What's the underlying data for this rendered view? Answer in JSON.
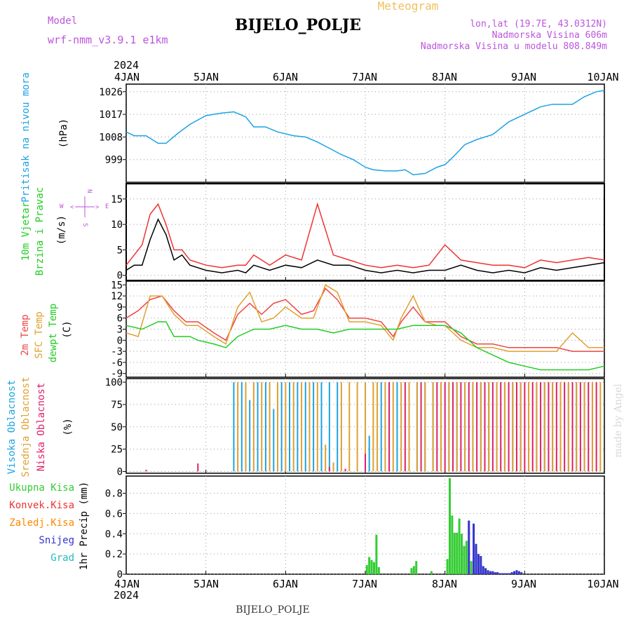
{
  "header": {
    "model_label": "Model",
    "model_name": "wrf-nmm_v3.9.1  e1km",
    "title": "BIJELO_POLJE",
    "product": "Meteogram",
    "location_line": "lon,lat (19.7E, 43.0312N)",
    "altitude_line": "Nadmorska Visina 606m",
    "model_altitude_line": "Nadmorska Visina u modelu 808.849m",
    "footer_name": "BIJELO_POLJE",
    "credit": "made by Angel",
    "year_top": "2024",
    "year_bottom": "2024"
  },
  "colors": {
    "pressure": "#1ca3e3",
    "wind_speed_black": "#000000",
    "gust_red": "#ee3333",
    "temp_2m": "#ee4444",
    "temp_sfc": "#e0a030",
    "dewpoint": "#22cc22",
    "high_cloud": "#1ca3e3",
    "mid_cloud": "#e0a030",
    "low_cloud": "#e0206a",
    "total_precip": "#33cc33",
    "conv_precip": "#ee3333",
    "frozen_precip": "#ff8800",
    "snow": "#3333cc",
    "graupel": "#22bbbb",
    "label_purple": "#bb55dd",
    "label_gold": "#f0c060"
  },
  "chart_data": [
    {
      "type": "line",
      "panel": "pressure",
      "left_label": "Pritisak na nivou mora",
      "unit_label": "(hPa)",
      "x_ticks": [
        "4JAN",
        "5JAN",
        "6JAN",
        "7JAN",
        "8JAN",
        "9JAN",
        "10JAN"
      ],
      "y_ticks": [
        999,
        1008,
        1017,
        1026
      ],
      "ylim": [
        990,
        1029
      ],
      "grid": true,
      "series": [
        {
          "x": [
            0,
            0.1,
            0.25,
            0.4,
            0.5,
            0.65,
            0.8,
            1.0,
            1.2,
            1.35,
            1.5,
            1.6,
            1.75,
            1.9,
            2.1,
            2.25,
            2.4,
            2.55,
            2.7,
            2.85,
            3.0,
            3.1,
            3.25,
            3.4,
            3.5,
            3.6,
            3.75,
            3.9,
            4.0,
            4.1,
            4.25,
            4.4,
            4.6,
            4.8,
            5.0,
            5.2,
            5.35,
            5.5,
            5.6,
            5.75,
            5.9,
            6.0
          ],
          "y": [
            1010,
            1008.5,
            1008.5,
            1005.5,
            1005.5,
            1009.5,
            1013,
            1016.5,
            1017.5,
            1018,
            1016,
            1012,
            1012,
            1010,
            1008.5,
            1008,
            1006,
            1003.5,
            1001,
            999,
            996,
            995,
            994.5,
            994.5,
            995,
            993,
            993.5,
            996,
            997,
            1000,
            1005,
            1007,
            1009,
            1014,
            1017,
            1020,
            1021,
            1021,
            1021,
            1024,
            1026,
            1026.5
          ]
        }
      ]
    },
    {
      "type": "line",
      "panel": "wind",
      "left_label_1": "10m Vjetar",
      "left_label_2": "Brzina i Pravac",
      "unit_label": "(m/s)",
      "compass_labels": [
        "N",
        "W",
        "E",
        "S",
        "<",
        ">"
      ],
      "x_ticks": [
        "4JAN",
        "5JAN",
        "6JAN",
        "7JAN",
        "8JAN",
        "9JAN",
        "10JAN"
      ],
      "y_ticks": [
        0,
        5,
        10,
        15
      ],
      "ylim": [
        -1,
        18
      ],
      "grid": true,
      "series": [
        {
          "color_key": "wind_speed_black",
          "x": [
            0,
            0.1,
            0.2,
            0.3,
            0.4,
            0.5,
            0.6,
            0.7,
            0.8,
            1.0,
            1.2,
            1.4,
            1.5,
            1.6,
            1.7,
            1.8,
            2.0,
            2.2,
            2.4,
            2.6,
            2.8,
            3.0,
            3.2,
            3.4,
            3.6,
            3.8,
            4.0,
            4.2,
            4.4,
            4.6,
            4.8,
            5.0,
            5.2,
            5.4,
            5.6,
            5.8,
            6.0
          ],
          "y": [
            1,
            2,
            2,
            7,
            11,
            8,
            3,
            4,
            2,
            1,
            0.5,
            1,
            0.5,
            2,
            1.5,
            1,
            2,
            1.5,
            3,
            2,
            2,
            1,
            0.5,
            1,
            0.5,
            1,
            1,
            2,
            1,
            0.5,
            1,
            0.5,
            1.5,
            1,
            1.5,
            2,
            2.5
          ]
        },
        {
          "color_key": "gust_red",
          "x": [
            0,
            0.1,
            0.2,
            0.3,
            0.4,
            0.5,
            0.6,
            0.7,
            0.8,
            1.0,
            1.2,
            1.4,
            1.5,
            1.6,
            1.7,
            1.8,
            2.0,
            2.2,
            2.4,
            2.6,
            2.8,
            3.0,
            3.2,
            3.4,
            3.6,
            3.8,
            4.0,
            4.2,
            4.4,
            4.6,
            4.8,
            5.0,
            5.2,
            5.4,
            5.6,
            5.8,
            6.0
          ],
          "y": [
            2,
            4,
            6,
            12,
            14,
            10,
            5,
            5,
            3,
            2,
            1.5,
            2,
            2,
            4,
            3,
            2,
            4,
            3,
            14,
            4,
            3,
            2,
            1.5,
            2,
            1.5,
            2,
            6,
            3,
            2.5,
            2,
            2,
            1.5,
            3,
            2.5,
            3,
            3.5,
            3
          ]
        }
      ]
    },
    {
      "type": "line",
      "panel": "temperature",
      "left_label_1": "2m Temp",
      "left_label_2": "SFC Temp",
      "left_label_3": "dewpt Temp",
      "unit_label": "(C)",
      "x_ticks": [
        "4JAN",
        "5JAN",
        "6JAN",
        "7JAN",
        "8JAN",
        "9JAN",
        "10JAN"
      ],
      "y_ticks": [
        -9,
        -6,
        -3,
        0,
        3,
        6,
        9,
        12,
        15
      ],
      "ylim": [
        -10,
        16
      ],
      "grid": true,
      "series": [
        {
          "name": "2m Temp",
          "color_key": "temp_2m",
          "x": [
            0,
            0.15,
            0.3,
            0.45,
            0.6,
            0.75,
            0.9,
            1.1,
            1.25,
            1.4,
            1.55,
            1.7,
            1.85,
            2.0,
            2.2,
            2.35,
            2.5,
            2.65,
            2.8,
            3.0,
            3.2,
            3.35,
            3.45,
            3.6,
            3.75,
            3.9,
            4.0,
            4.2,
            4.4,
            4.6,
            4.8,
            5.0,
            5.2,
            5.4,
            5.6,
            5.8,
            6.0
          ],
          "y": [
            6,
            8,
            11,
            12,
            8,
            5,
            5,
            2,
            0,
            7,
            10,
            7,
            10,
            11,
            7,
            8,
            14,
            11,
            6,
            6,
            5,
            1,
            5,
            9,
            5,
            5,
            5,
            1,
            -1,
            -1,
            -2,
            -2,
            -2,
            -2,
            -3,
            -3,
            -3
          ]
        },
        {
          "name": "SFC Temp",
          "color_key": "temp_sfc",
          "x": [
            0,
            0.15,
            0.3,
            0.45,
            0.6,
            0.75,
            0.9,
            1.1,
            1.25,
            1.4,
            1.55,
            1.7,
            1.85,
            2.0,
            2.2,
            2.35,
            2.5,
            2.65,
            2.8,
            3.0,
            3.2,
            3.35,
            3.45,
            3.6,
            3.75,
            3.9,
            4.0,
            4.2,
            4.4,
            4.6,
            4.8,
            5.0,
            5.2,
            5.4,
            5.6,
            5.8,
            6.0
          ],
          "y": [
            2,
            1,
            12,
            12,
            7,
            4,
            4,
            1,
            -1,
            9,
            13,
            5,
            6,
            9,
            6,
            6,
            15,
            13,
            5,
            5,
            4,
            0,
            6,
            12,
            5,
            4,
            4,
            0,
            -2,
            -2,
            -3,
            -3,
            -3,
            -3,
            2,
            -2,
            -2
          ]
        },
        {
          "name": "dewpt Temp",
          "color_key": "dewpoint",
          "x": [
            0,
            0.2,
            0.4,
            0.5,
            0.6,
            0.8,
            0.9,
            1.1,
            1.25,
            1.4,
            1.6,
            1.8,
            2.0,
            2.2,
            2.4,
            2.6,
            2.8,
            3.0,
            3.2,
            3.4,
            3.6,
            3.8,
            4.0,
            4.2,
            4.4,
            4.6,
            4.8,
            5.0,
            5.2,
            5.4,
            5.6,
            5.8,
            6.0
          ],
          "y": [
            4,
            3,
            5,
            5,
            1,
            1,
            0,
            -1,
            -2,
            1,
            3,
            3,
            4,
            3,
            3,
            2,
            3,
            3,
            3,
            3,
            4,
            4,
            4,
            2,
            -2,
            -4,
            -6,
            -7,
            -8,
            -8,
            -8,
            -8,
            -7
          ]
        }
      ]
    },
    {
      "type": "bar",
      "panel": "cloud",
      "left_label_1": "Visoka Oblacnost",
      "left_label_2": "Srednja Oblacnost",
      "left_label_3": "Niska Oblacnost",
      "unit_label": "(%)",
      "x_ticks": [
        "4JAN",
        "5JAN",
        "6JAN",
        "7JAN",
        "8JAN",
        "9JAN",
        "10JAN"
      ],
      "y_ticks": [
        0,
        25,
        50,
        75,
        100
      ],
      "ylim": [
        -2,
        104
      ],
      "grid": true,
      "series": [
        {
          "name": "Visoka Oblacnost",
          "color_key": "high_cloud",
          "x": [
            1.35,
            1.45,
            1.55,
            1.65,
            1.75,
            1.85,
            1.95,
            2.05,
            2.15,
            2.25,
            2.35,
            2.45,
            2.55,
            2.65,
            3.0,
            3.05,
            3.2,
            3.3,
            3.4,
            3.55,
            3.65,
            3.75,
            3.85,
            3.95,
            4.05,
            4.15,
            4.25,
            4.35,
            4.45,
            4.55,
            4.65,
            4.75,
            4.85,
            4.95,
            5.05,
            5.15,
            5.25,
            5.35,
            5.45,
            5.55,
            5.65,
            5.75,
            5.85,
            5.95
          ],
          "values": [
            100,
            100,
            80,
            100,
            100,
            70,
            100,
            100,
            100,
            100,
            100,
            100,
            100,
            100,
            20,
            40,
            100,
            100,
            100,
            100,
            100,
            100,
            100,
            100,
            100,
            100,
            100,
            100,
            100,
            100,
            100,
            100,
            100,
            100,
            100,
            100,
            100,
            100,
            100,
            100,
            100,
            100,
            100,
            0
          ]
        },
        {
          "name": "Srednja Oblacnost",
          "color_key": "mid_cloud",
          "x": [
            1.4,
            1.5,
            1.6,
            1.7,
            1.8,
            1.9,
            2.0,
            2.1,
            2.2,
            2.3,
            2.4,
            2.5,
            2.6,
            2.7,
            2.8,
            2.9,
            3.0,
            3.1,
            3.15,
            3.25,
            3.35,
            3.45,
            3.55,
            3.65,
            3.75,
            3.85,
            3.95,
            4.05,
            4.15,
            4.25,
            4.35,
            4.45,
            4.55,
            4.65,
            4.75,
            4.85,
            4.95,
            5.05,
            5.15,
            5.25,
            5.35,
            5.45,
            5.55,
            5.65,
            5.75,
            5.85,
            5.95
          ],
          "values": [
            100,
            100,
            100,
            100,
            100,
            100,
            100,
            100,
            100,
            100,
            100,
            30,
            10,
            100,
            100,
            100,
            100,
            100,
            100,
            100,
            100,
            100,
            100,
            100,
            100,
            100,
            100,
            100,
            100,
            100,
            100,
            100,
            100,
            100,
            100,
            100,
            100,
            100,
            100,
            100,
            100,
            100,
            100,
            100,
            100,
            100,
            100
          ]
        },
        {
          "name": "Niska Oblacnost",
          "color_key": "low_cloud",
          "x": [
            0.25,
            0.9,
            2.55,
            2.75,
            3.0,
            3.3,
            3.5,
            3.7,
            3.9,
            4.0,
            4.1,
            4.2,
            4.3,
            4.4,
            4.5,
            4.6,
            4.7,
            4.8,
            4.9,
            5.0,
            5.1,
            5.2,
            5.3,
            5.4,
            5.5,
            5.6,
            5.7,
            5.8,
            5.9
          ],
          "values": [
            2,
            9,
            5,
            3,
            20,
            100,
            100,
            100,
            100,
            100,
            100,
            100,
            100,
            100,
            100,
            100,
            100,
            100,
            100,
            100,
            100,
            100,
            100,
            100,
            100,
            100,
            100,
            100,
            100
          ]
        }
      ]
    },
    {
      "type": "bar",
      "panel": "precipitation",
      "left_labels": [
        "Ukupna Kisa",
        "Konvek.Kisa",
        "Zaledj.Kisa",
        "Snijeg",
        "Grad"
      ],
      "unit_label": "1hr Precip (mm)",
      "x_ticks": [
        "4JAN",
        "5JAN",
        "6JAN",
        "7JAN",
        "8JAN",
        "9JAN",
        "10JAN"
      ],
      "y_ticks": [
        0,
        0.2,
        0.4,
        0.6,
        0.8
      ],
      "ylim": [
        0,
        0.97
      ],
      "grid": true,
      "series": [
        {
          "name": "Ukupna Kisa",
          "color_key": "total_precip",
          "x": [
            3.02,
            3.05,
            3.08,
            3.11,
            3.14,
            3.17,
            3.58,
            3.61,
            3.64,
            3.83,
            4.03,
            4.06,
            4.09,
            4.12,
            4.15,
            4.18,
            4.21,
            4.24,
            4.27,
            4.33
          ],
          "values": [
            0.09,
            0.17,
            0.14,
            0.12,
            0.39,
            0.07,
            0.06,
            0.08,
            0.13,
            0.03,
            0.15,
            0.95,
            0.58,
            0.41,
            0.41,
            0.55,
            0.4,
            0.28,
            0.33,
            0.13
          ]
        },
        {
          "name": "Snijeg",
          "color_key": "snow",
          "x": [
            4.3,
            4.36,
            4.39,
            4.42,
            4.45,
            4.48,
            4.51,
            4.54,
            4.57,
            4.6,
            4.63,
            4.66,
            4.69,
            4.72,
            4.75,
            4.78,
            4.81,
            4.84,
            4.87,
            4.9,
            4.93,
            4.96
          ],
          "values": [
            0.53,
            0.5,
            0.3,
            0.2,
            0.18,
            0.08,
            0.06,
            0.04,
            0.03,
            0.03,
            0.02,
            0.02,
            0.01,
            0.01,
            0.01,
            0.01,
            0.01,
            0.02,
            0.03,
            0.04,
            0.03,
            0.02
          ]
        }
      ]
    }
  ]
}
